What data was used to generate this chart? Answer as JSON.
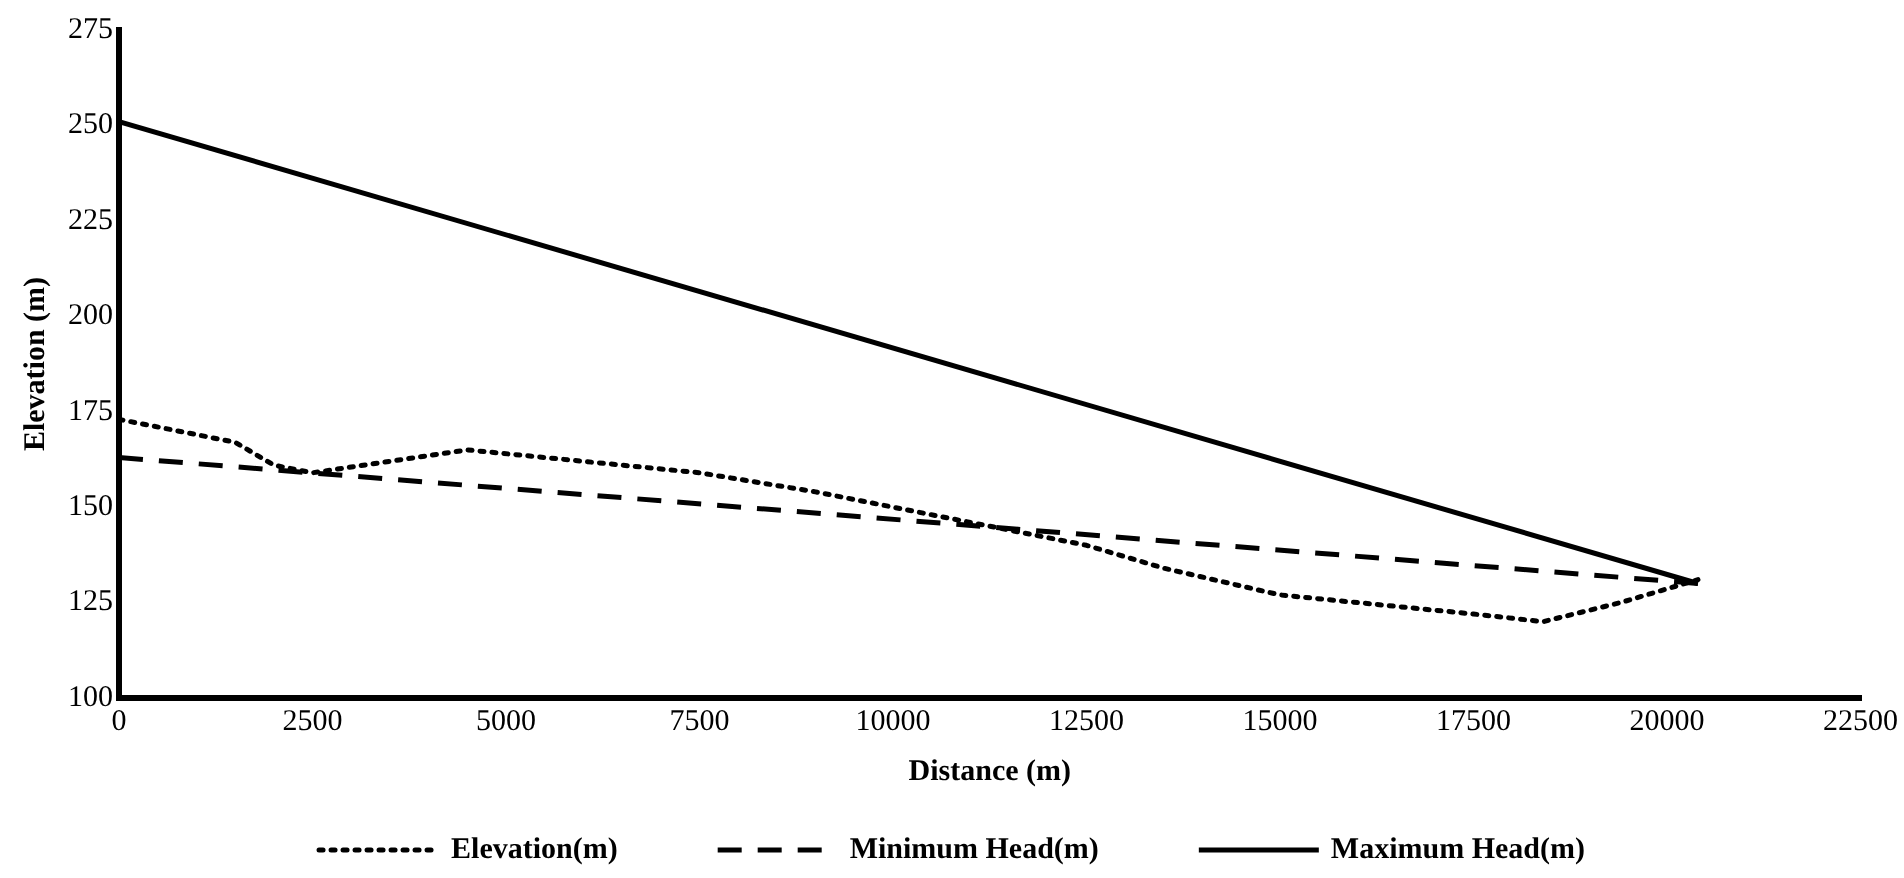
{
  "chart_data": {
    "type": "line",
    "xlabel": "Distance (m)",
    "ylabel": "Elevation (m)",
    "xlim": [
      0,
      22500
    ],
    "xticks": [
      0,
      2500,
      5000,
      7500,
      10000,
      12500,
      15000,
      17500,
      20000,
      22500
    ],
    "ylim": [
      100,
      275
    ],
    "yticks": [
      100,
      125,
      150,
      175,
      200,
      225,
      250,
      275
    ],
    "grid": false,
    "legend": "bottom",
    "marker": "none",
    "series": [
      {
        "name": "Elevation(m)",
        "color": "#000000",
        "line_style": "dotted",
        "x": [
          0,
          1000,
          1500,
          2000,
          2500,
          3500,
          4500,
          6000,
          7500,
          9000,
          10000,
          11000,
          12500,
          13500,
          15000,
          16500,
          17500,
          18400,
          19400,
          20400
        ],
        "values": [
          173,
          169,
          167,
          161,
          159,
          162,
          165,
          162,
          159,
          154,
          150,
          146,
          140,
          134,
          127,
          124,
          122,
          120,
          125,
          131
        ]
      },
      {
        "name": "Minimum Head(m)",
        "color": "#000000",
        "line_style": "dashed",
        "x": [
          0,
          20400
        ],
        "values": [
          163,
          130
        ]
      },
      {
        "name": "Maximum Head(m)",
        "color": "#000000",
        "line_style": "solid",
        "x": [
          0,
          20400
        ],
        "values": [
          251,
          130
        ]
      }
    ]
  }
}
